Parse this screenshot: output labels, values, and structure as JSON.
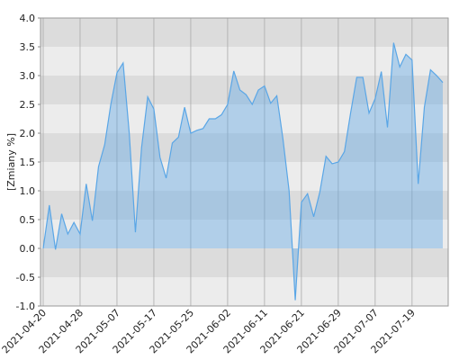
{
  "chart_data": {
    "type": "area",
    "y_label": "[Zmiany %]",
    "categories": [
      "2021-04-20",
      null,
      null,
      null,
      null,
      null,
      "2021-04-28",
      null,
      null,
      null,
      null,
      null,
      "2021-05-07",
      null,
      null,
      null,
      null,
      null,
      "2021-05-17",
      null,
      null,
      null,
      null,
      null,
      "2021-05-25",
      null,
      null,
      null,
      null,
      null,
      "2021-06-02",
      null,
      null,
      null,
      null,
      null,
      "2021-06-11",
      null,
      null,
      null,
      null,
      null,
      "2021-06-21",
      null,
      null,
      null,
      null,
      null,
      "2021-06-29",
      null,
      null,
      null,
      null,
      null,
      "2021-07-07",
      null,
      null,
      null,
      null,
      null,
      "2021-07-19",
      null,
      null,
      null,
      null,
      null
    ],
    "values": [
      0,
      0.75,
      -0.02,
      0.6,
      0.25,
      0.45,
      0.25,
      1.12,
      0.48,
      1.42,
      1.8,
      2.5,
      3.05,
      3.22,
      2.0,
      0.28,
      1.75,
      2.63,
      2.42,
      1.58,
      1.22,
      1.83,
      1.93,
      2.45,
      2.0,
      2.05,
      2.08,
      2.25,
      2.25,
      2.32,
      2.5,
      3.08,
      2.75,
      2.67,
      2.5,
      2.75,
      2.82,
      2.52,
      2.65,
      1.9,
      1.0,
      -0.9,
      0.8,
      0.95,
      0.55,
      0.98,
      1.6,
      1.47,
      1.5,
      1.68,
      2.35,
      2.97,
      2.97,
      2.35,
      2.6,
      3.07,
      2.1,
      3.57,
      3.15,
      3.37,
      3.27,
      1.12,
      2.45,
      3.1,
      3.0,
      2.88
    ],
    "color": "#5aa6e6",
    "ylim": [
      -1,
      4
    ],
    "yticks": [
      {
        "value": -1,
        "label": "-1.0"
      },
      -0.5,
      {
        "value": 0,
        "label": "0.0"
      },
      0.5,
      {
        "value": 1,
        "label": "1.0"
      },
      1.5,
      {
        "value": 2,
        "label": "2.0"
      },
      2.5,
      {
        "value": 3,
        "label": "3.0"
      },
      3.5,
      {
        "value": 4,
        "label": "4.0"
      }
    ],
    "grid": true
  }
}
